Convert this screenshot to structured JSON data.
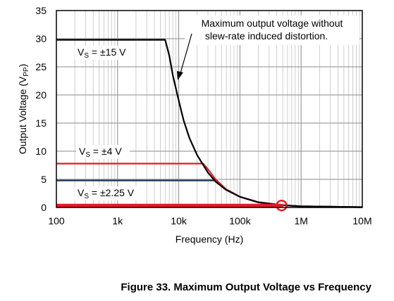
{
  "caption": "Figure 33. Maximum Output Voltage vs Frequency",
  "chart_data": {
    "type": "line",
    "xscale": "log",
    "xlim": [
      100,
      10000000
    ],
    "ylim": [
      0,
      35
    ],
    "xlabel": "Frequency (Hz)",
    "ylabel": "Output Voltage (VPP)",
    "ylabel_main": "Output Voltage (V",
    "ylabel_sub": "PP",
    "ylabel_end": ")",
    "xticks": [
      100,
      1000,
      10000,
      100000,
      1000000,
      10000000
    ],
    "xtick_labels": [
      "100",
      "1k",
      "10k",
      "100k",
      "1M",
      "10M"
    ],
    "yticks": [
      0,
      5,
      10,
      15,
      20,
      25,
      30,
      35
    ],
    "ytick_labels": [
      "0",
      "5",
      "10",
      "15",
      "20",
      "25",
      "30",
      "35"
    ],
    "grid": true,
    "series": [
      {
        "name": "VS = ±15 V",
        "label_main": "V",
        "label_sub": "S",
        "label_rest": " = ±15 V",
        "color": "#000000",
        "points": [
          [
            100,
            29.8
          ],
          [
            6000,
            29.8
          ],
          [
            7000,
            27
          ],
          [
            8000,
            23.5
          ],
          [
            10000,
            19
          ],
          [
            12000,
            15.5
          ],
          [
            15000,
            12.3
          ],
          [
            20000,
            9.3
          ],
          [
            30000,
            6.2
          ],
          [
            40000,
            4.6
          ],
          [
            60000,
            3.1
          ],
          [
            100000,
            1.9
          ],
          [
            200000,
            0.9
          ],
          [
            500000,
            0.4
          ],
          [
            1000000,
            0.2
          ],
          [
            10000000,
            0.05
          ]
        ]
      },
      {
        "name": "VS = ±4 V",
        "label_main": "V",
        "label_sub": "S",
        "label_rest": " = ±4 V",
        "color": "#e31b23",
        "points": [
          [
            100,
            7.8
          ],
          [
            25000,
            7.8
          ],
          [
            30000,
            6.8
          ],
          [
            40000,
            5.0
          ],
          [
            60000,
            3.2
          ],
          [
            100000,
            1.9
          ],
          [
            200000,
            0.95
          ],
          [
            500000,
            0.4
          ],
          [
            1000000,
            0.2
          ],
          [
            10000000,
            0.05
          ]
        ]
      },
      {
        "name": "VS = ±2.25 V",
        "label_main": "V",
        "label_sub": "S",
        "label_rest": " = ±2.25 V",
        "color": "#1f3a5f",
        "points": [
          [
            100,
            4.8
          ],
          [
            38000,
            4.8
          ],
          [
            45000,
            4.3
          ],
          [
            60000,
            3.2
          ],
          [
            100000,
            1.9
          ],
          [
            200000,
            0.95
          ],
          [
            500000,
            0.4
          ],
          [
            1000000,
            0.2
          ],
          [
            10000000,
            0.05
          ]
        ]
      },
      {
        "name": "",
        "color": "#e31b23",
        "thick": true,
        "points": [
          [
            100,
            0.35
          ],
          [
            480000,
            0.35
          ]
        ]
      }
    ],
    "annotations": [
      {
        "text_lines": [
          "Maximum output voltage without",
          "slew-rate induced distortion."
        ]
      }
    ],
    "marker": {
      "x": 480000,
      "y": 0.35,
      "color": "#e31b23"
    }
  }
}
